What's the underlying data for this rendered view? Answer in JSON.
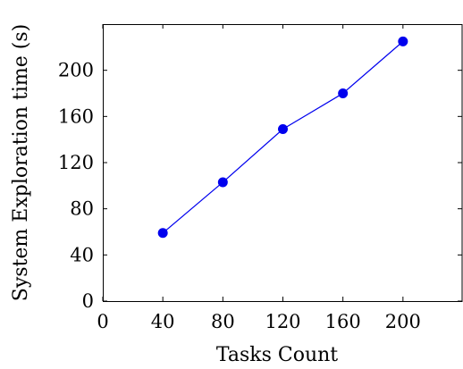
{
  "chart_data": {
    "type": "line",
    "title": "",
    "xlabel": "Tasks Count",
    "ylabel": "System Exploration time (s)",
    "xlim": [
      0,
      240
    ],
    "ylim": [
      0,
      240
    ],
    "xticks": [
      0,
      40,
      80,
      120,
      160,
      200
    ],
    "yticks": [
      0,
      40,
      80,
      120,
      160,
      200
    ],
    "grid": false,
    "legend": "none",
    "series": [
      {
        "color": "#0000ee",
        "x": [
          40,
          80,
          120,
          160,
          200
        ],
        "y": [
          59,
          103,
          149,
          180,
          225
        ]
      }
    ]
  }
}
